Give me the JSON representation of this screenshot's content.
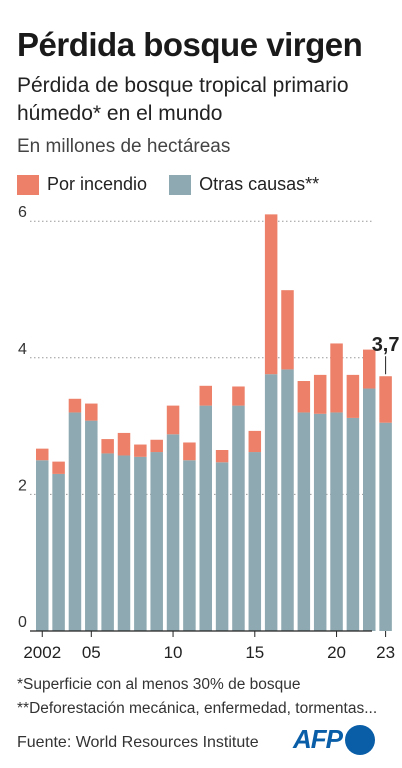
{
  "header": {
    "title": "Pérdida bosque virgen",
    "subtitle": "Pérdida de bosque tropical primario húmedo* en el mundo",
    "units": "En millones de hectáreas"
  },
  "legend": {
    "fire": "Por incendio",
    "other": "Otras causas**"
  },
  "colors": {
    "fire": "#ec8068",
    "other": "#8ea9b1",
    "grid": "#999999"
  },
  "chart_data": {
    "type": "bar",
    "stacked": true,
    "categories": [
      "2002",
      "2003",
      "2004",
      "2005",
      "2006",
      "2007",
      "2008",
      "2009",
      "2010",
      "2011",
      "2012",
      "2013",
      "2014",
      "2015",
      "2016",
      "2017",
      "2018",
      "2019",
      "2020",
      "2021",
      "2022",
      "2023"
    ],
    "tick_labels": {
      "2002": "2002",
      "2005": "05",
      "2010": "10",
      "2015": "15",
      "2020": "20",
      "2023": "23"
    },
    "series": [
      {
        "name": "Otras causas**",
        "values": [
          2.5,
          2.3,
          3.2,
          3.08,
          2.6,
          2.57,
          2.55,
          2.62,
          2.88,
          2.5,
          3.3,
          2.47,
          3.3,
          2.62,
          3.76,
          3.83,
          3.2,
          3.18,
          3.2,
          3.12,
          3.55,
          3.05
        ]
      },
      {
        "name": "Por incendio",
        "values": [
          0.17,
          0.18,
          0.2,
          0.25,
          0.21,
          0.33,
          0.18,
          0.18,
          0.42,
          0.26,
          0.29,
          0.18,
          0.28,
          0.31,
          2.34,
          1.16,
          0.46,
          0.57,
          1.01,
          0.63,
          0.57,
          0.68
        ]
      }
    ],
    "annotation": {
      "category": "2023",
      "text": "3,7"
    },
    "yticks": [
      0,
      2,
      4,
      6
    ],
    "ylim": [
      0,
      6.2
    ],
    "grid": true
  },
  "notes": {
    "note1": "*Superficie con al menos 30% de bosque",
    "note2": "**Deforestación mecánica, enfermedad, tormentas...",
    "source": "Fuente: World Resources Institute"
  },
  "logo": {
    "text": "AFP"
  }
}
